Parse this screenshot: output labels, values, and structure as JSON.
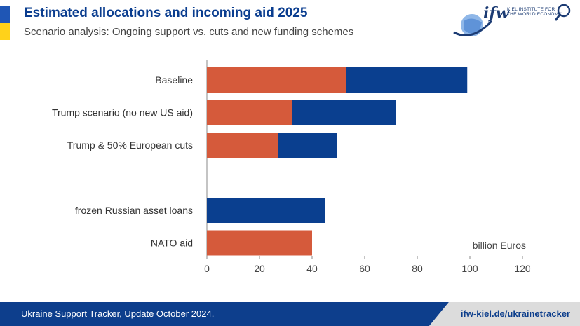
{
  "header": {
    "title": "Estimated allocations and incoming aid 2025",
    "subtitle": "Scenario analysis: Ongoing support vs. cuts and new funding schemes"
  },
  "logo": {
    "word": "ifw",
    "institute_line1": "KIEL INSTITUTE FOR",
    "institute_line2": "THE WORLD ECONOMY"
  },
  "footer": {
    "source": "Ukraine Support Tracker, Update October 2024.",
    "url": "ifw-kiel.de/ukrainetracker"
  },
  "colors": {
    "orange": "#d55a3b",
    "blue": "#0a3f8f",
    "axis": "#888888"
  },
  "chart_data": {
    "type": "bar",
    "orientation": "horizontal",
    "stacked": true,
    "unit_label": "billion Euros",
    "xlim": [
      0,
      120
    ],
    "xticks": [
      0,
      20,
      40,
      60,
      80,
      100,
      120
    ],
    "rows": [
      {
        "label": "Baseline",
        "segments": [
          {
            "color": "orange",
            "value": 53
          },
          {
            "color": "blue",
            "value": 46
          }
        ]
      },
      {
        "label": "Trump scenario (no new US aid)",
        "segments": [
          {
            "color": "orange",
            "value": 32.5
          },
          {
            "color": "blue",
            "value": 39.5
          }
        ]
      },
      {
        "label": "Trump & 50% European cuts",
        "segments": [
          {
            "color": "orange",
            "value": 27
          },
          {
            "color": "blue",
            "value": 22.5
          }
        ]
      },
      {
        "label": "",
        "segments": []
      },
      {
        "label": "frozen Russian asset loans",
        "segments": [
          {
            "color": "blue",
            "value": 45
          }
        ]
      },
      {
        "label": "NATO aid",
        "segments": [
          {
            "color": "orange",
            "value": 40
          }
        ]
      }
    ]
  }
}
